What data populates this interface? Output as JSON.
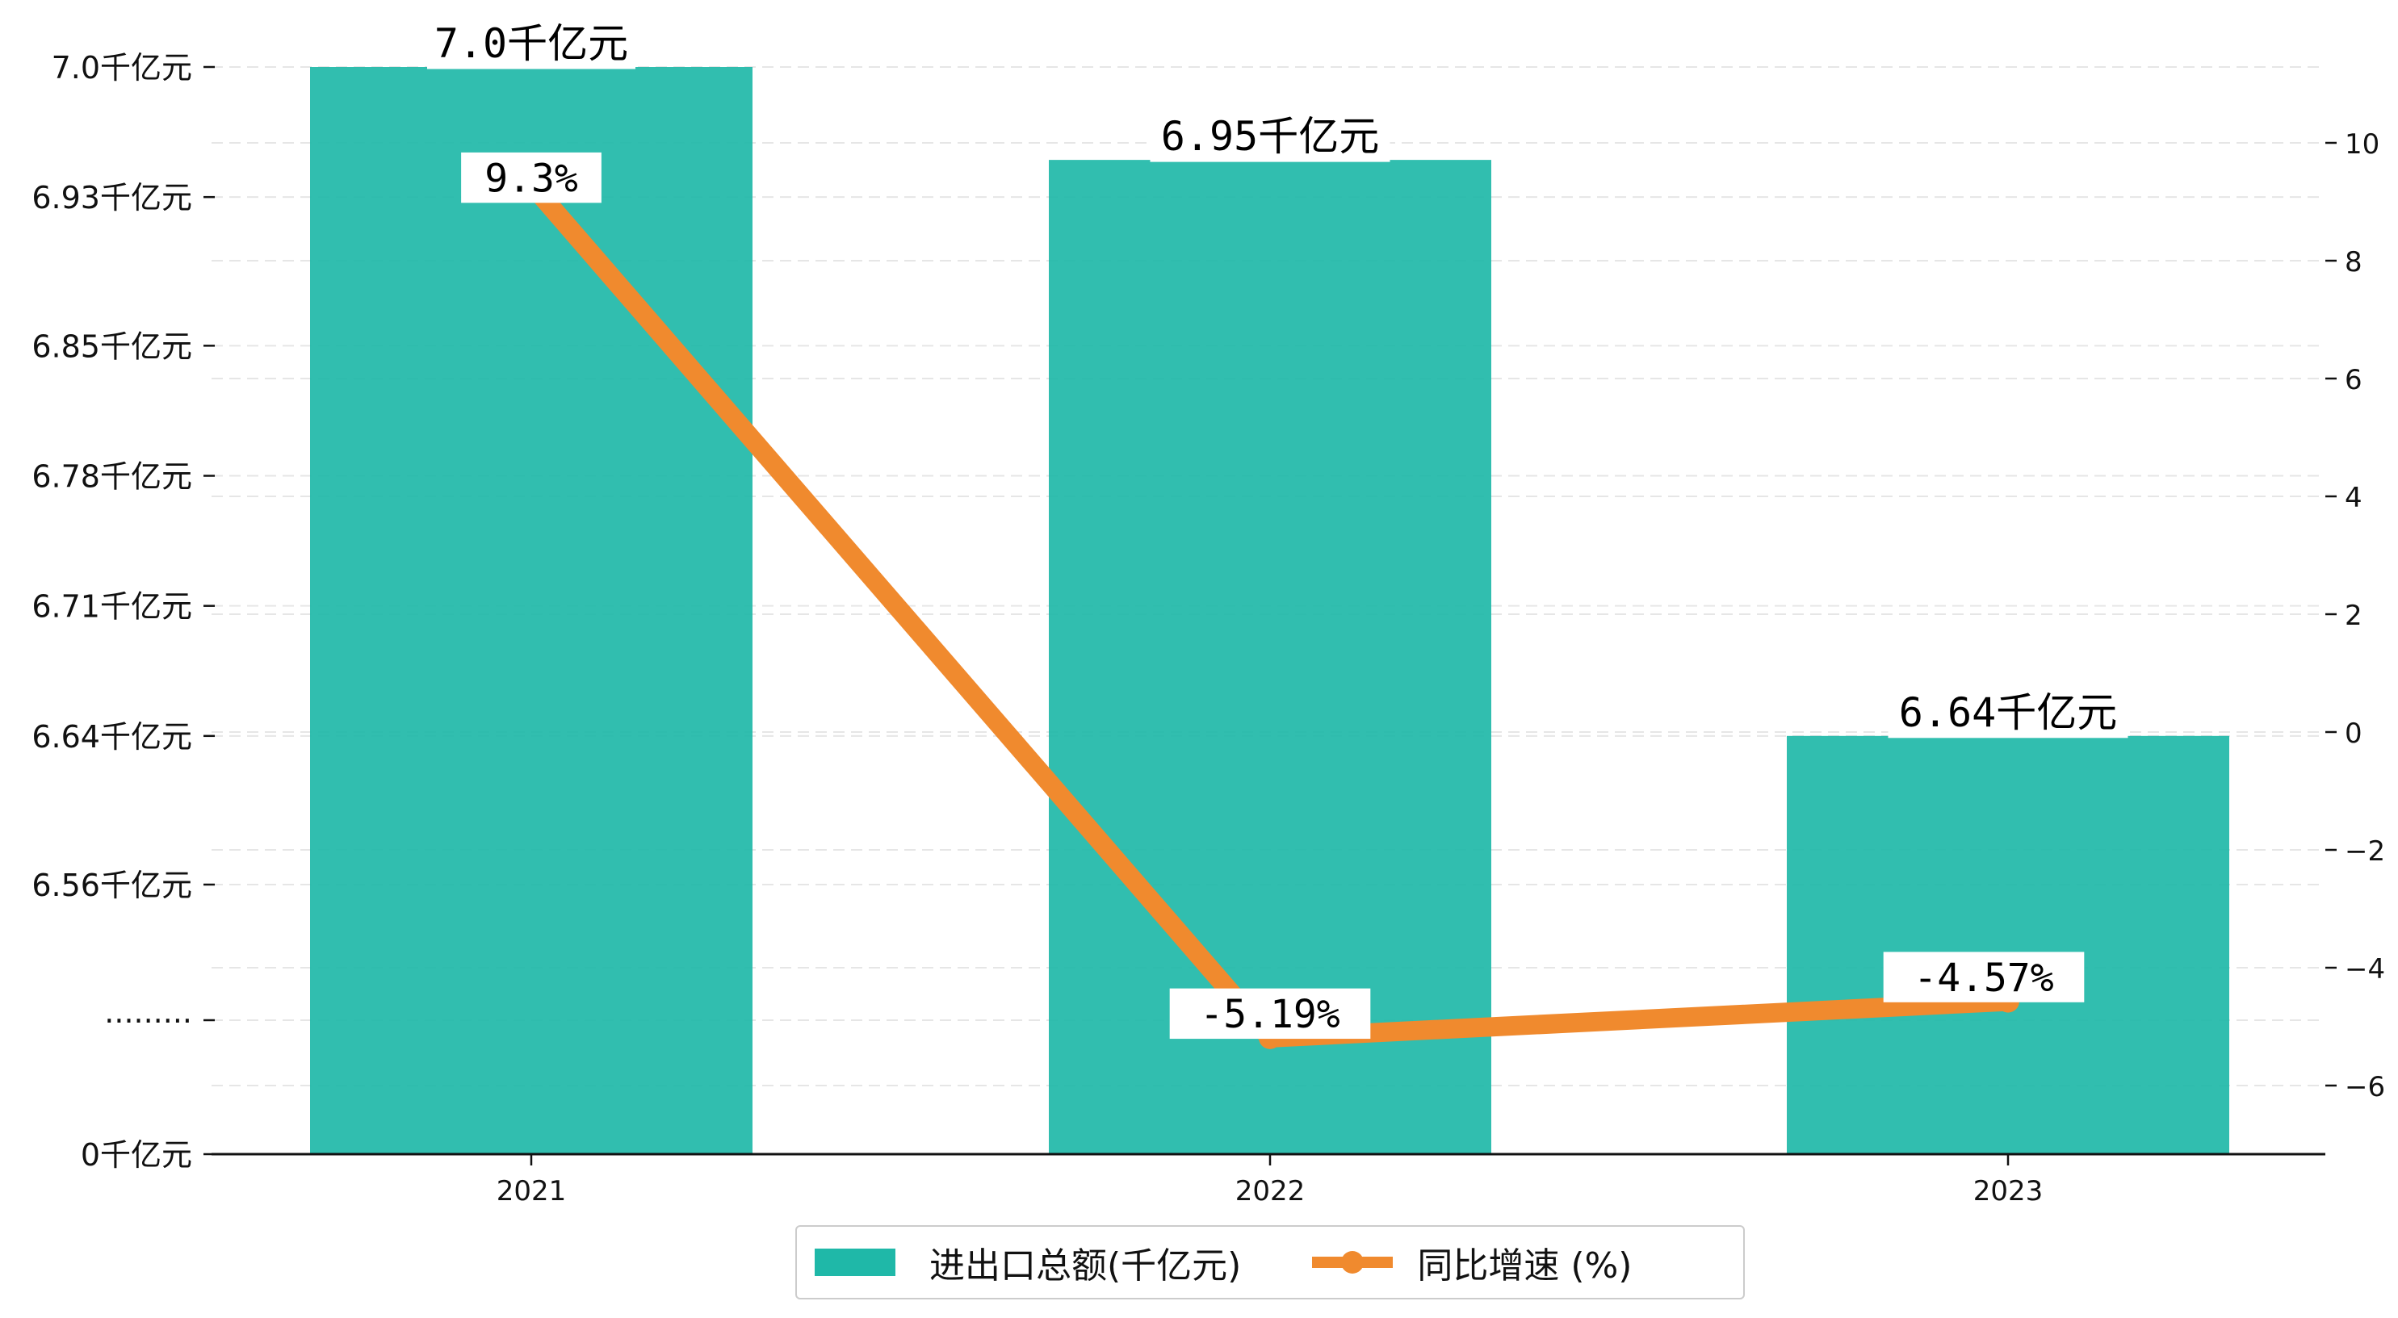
{
  "chart_data": {
    "type": "bar+line",
    "categories": [
      "2021",
      "2022",
      "2023"
    ],
    "series": [
      {
        "name": "进出口总额(千亿元)",
        "kind": "bar",
        "axis": "left",
        "values": [
          7.0,
          6.95,
          6.64
        ],
        "labels": [
          "7.0千亿元",
          "6.95千亿元",
          "6.64千亿元"
        ],
        "color": "#1fb8a8"
      },
      {
        "name": "同比增速 (%)",
        "kind": "line",
        "axis": "right",
        "values": [
          9.3,
          -5.19,
          -4.57
        ],
        "labels": [
          "9.3%",
          "-5.19%",
          "-4.57%"
        ],
        "color": "#f08a2e"
      }
    ],
    "left_axis": {
      "broken": true,
      "ticks": [
        {
          "value": 0,
          "label": "0千亿元"
        },
        {
          "value": null,
          "label": "·········"
        },
        {
          "value": 6.56,
          "label": "6.56千亿元"
        },
        {
          "value": 6.64,
          "label": "6.64千亿元"
        },
        {
          "value": 6.71,
          "label": "6.71千亿元"
        },
        {
          "value": 6.78,
          "label": "6.78千亿元"
        },
        {
          "value": 6.85,
          "label": "6.85千亿元"
        },
        {
          "value": 6.93,
          "label": "6.93千亿元"
        },
        {
          "value": 7.0,
          "label": "7.0千亿元"
        }
      ]
    },
    "right_axis": {
      "ticks": [
        -6,
        -4,
        -2,
        0,
        2,
        4,
        6,
        8,
        10
      ]
    },
    "grid": "horizontal dashed",
    "legend_position": "bottom-center"
  }
}
